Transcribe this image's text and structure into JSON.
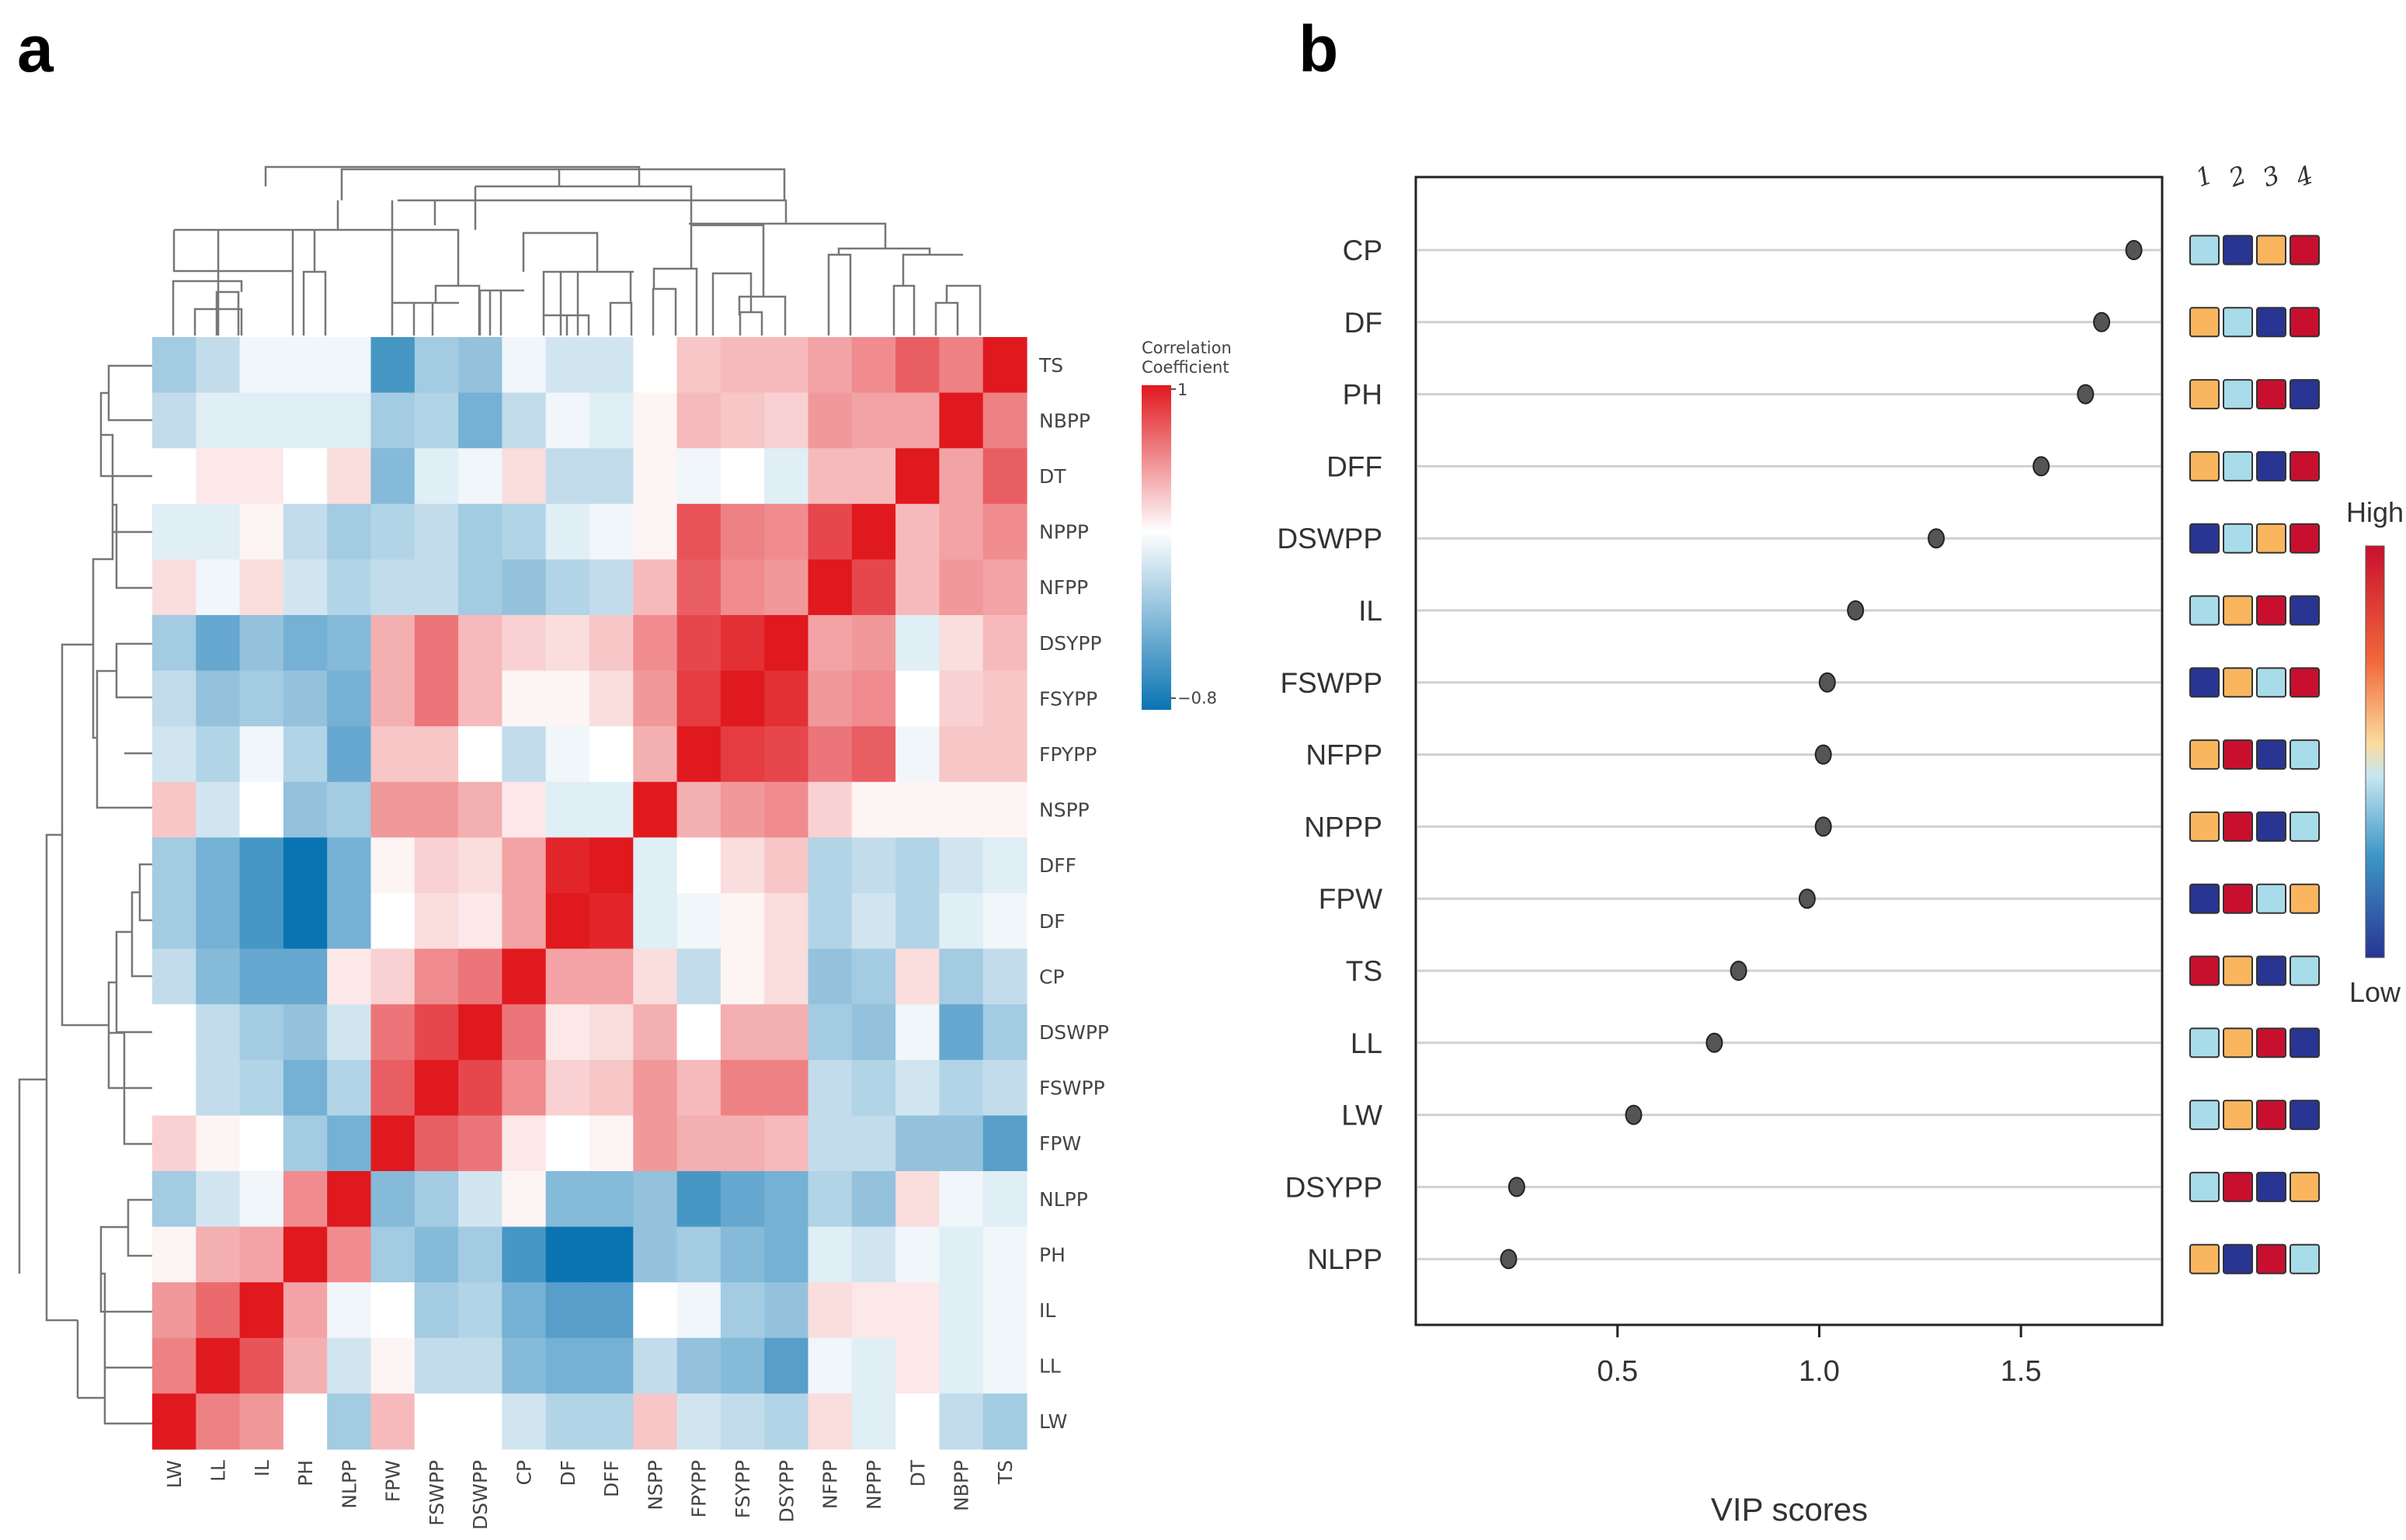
{
  "panel_a": {
    "letter": "a"
  },
  "panel_b": {
    "letter": "b"
  },
  "chart_data": [
    {
      "type": "heatmap",
      "title": "",
      "rows": [
        "TS",
        "NBPP",
        "DT",
        "NPPP",
        "NFPP",
        "DSYPP",
        "FSYPP",
        "FPYPP",
        "NSPP",
        "DFF",
        "DF",
        "CP",
        "DSWPP",
        "FSWPP",
        "FPW",
        "NLPP",
        "PH",
        "IL",
        "LL",
        "LW"
      ],
      "columns": [
        "LW",
        "LL",
        "IL",
        "PH",
        "NLPP",
        "FPW",
        "FSWPP",
        "DSWPP",
        "CP",
        "DF",
        "DFF",
        "NSPP",
        "FPYPP",
        "FSYPP",
        "DSYPP",
        "NFPP",
        "NPPP",
        "DT",
        "NBPP",
        "TS"
      ],
      "values": [
        [
          -0.3,
          -0.2,
          -0.05,
          -0.05,
          -0.05,
          -0.6,
          -0.3,
          -0.35,
          -0.05,
          -0.15,
          -0.15,
          0.0,
          0.25,
          0.3,
          0.3,
          0.4,
          0.5,
          0.7,
          0.55,
          1.0
        ],
        [
          -0.2,
          -0.1,
          -0.1,
          -0.1,
          -0.1,
          -0.3,
          -0.25,
          -0.45,
          -0.2,
          -0.05,
          -0.1,
          0.05,
          0.3,
          0.25,
          0.2,
          0.45,
          0.4,
          0.4,
          1.0,
          0.55
        ],
        [
          0.0,
          0.1,
          0.1,
          0.0,
          0.15,
          -0.4,
          -0.1,
          -0.05,
          0.15,
          -0.2,
          -0.2,
          0.05,
          -0.05,
          0.0,
          -0.1,
          0.3,
          0.3,
          1.0,
          0.4,
          0.7
        ],
        [
          -0.1,
          -0.1,
          0.05,
          -0.2,
          -0.3,
          -0.25,
          -0.2,
          -0.3,
          -0.25,
          -0.1,
          -0.05,
          0.05,
          0.75,
          0.55,
          0.5,
          0.8,
          1.0,
          0.3,
          0.4,
          0.5
        ],
        [
          0.15,
          -0.05,
          0.15,
          -0.15,
          -0.25,
          -0.2,
          -0.2,
          -0.3,
          -0.35,
          -0.25,
          -0.2,
          0.3,
          0.7,
          0.5,
          0.45,
          1.0,
          0.8,
          0.3,
          0.45,
          0.4
        ],
        [
          -0.3,
          -0.5,
          -0.35,
          -0.45,
          -0.4,
          0.35,
          0.6,
          0.3,
          0.2,
          0.15,
          0.25,
          0.5,
          0.8,
          0.9,
          1.0,
          0.4,
          0.45,
          -0.1,
          0.15,
          0.3
        ],
        [
          -0.2,
          -0.35,
          -0.3,
          -0.35,
          -0.45,
          0.35,
          0.6,
          0.3,
          0.05,
          0.05,
          0.15,
          0.45,
          0.85,
          1.0,
          0.9,
          0.45,
          0.5,
          0.0,
          0.2,
          0.25
        ],
        [
          -0.15,
          -0.25,
          -0.05,
          -0.25,
          -0.5,
          0.25,
          0.25,
          0.0,
          -0.2,
          -0.05,
          0.0,
          0.35,
          1.0,
          0.85,
          0.8,
          0.6,
          0.7,
          -0.05,
          0.25,
          0.25
        ],
        [
          0.25,
          -0.15,
          0.0,
          -0.35,
          -0.3,
          0.45,
          0.45,
          0.35,
          0.1,
          -0.1,
          -0.1,
          1.0,
          0.35,
          0.45,
          0.5,
          0.2,
          0.05,
          0.05,
          0.05,
          0.05
        ],
        [
          -0.3,
          -0.45,
          -0.6,
          -0.8,
          -0.45,
          0.05,
          0.2,
          0.15,
          0.4,
          0.95,
          1.0,
          -0.1,
          0.0,
          0.15,
          0.25,
          -0.25,
          -0.2,
          -0.25,
          -0.15,
          -0.1
        ],
        [
          -0.3,
          -0.45,
          -0.6,
          -0.8,
          -0.45,
          0.0,
          0.15,
          0.1,
          0.4,
          1.0,
          0.95,
          -0.1,
          -0.05,
          0.05,
          0.15,
          -0.25,
          -0.15,
          -0.25,
          -0.1,
          -0.05
        ],
        [
          -0.2,
          -0.4,
          -0.5,
          -0.5,
          0.1,
          0.2,
          0.5,
          0.6,
          1.0,
          0.4,
          0.4,
          0.15,
          -0.2,
          0.05,
          0.15,
          -0.35,
          -0.3,
          0.15,
          -0.3,
          -0.2
        ],
        [
          0.0,
          -0.2,
          -0.3,
          -0.35,
          -0.15,
          0.6,
          0.8,
          1.0,
          0.6,
          0.1,
          0.15,
          0.35,
          0.0,
          0.35,
          0.35,
          -0.3,
          -0.35,
          -0.05,
          -0.5,
          -0.3
        ],
        [
          0.0,
          -0.2,
          -0.25,
          -0.45,
          -0.25,
          0.7,
          1.0,
          0.8,
          0.5,
          0.2,
          0.25,
          0.45,
          0.3,
          0.55,
          0.55,
          -0.2,
          -0.25,
          -0.15,
          -0.25,
          -0.2
        ],
        [
          0.2,
          0.05,
          0.0,
          -0.3,
          -0.45,
          1.0,
          0.7,
          0.6,
          0.1,
          0.0,
          0.05,
          0.45,
          0.35,
          0.35,
          0.3,
          -0.2,
          -0.2,
          -0.35,
          -0.35,
          -0.55
        ],
        [
          -0.3,
          -0.15,
          -0.05,
          0.5,
          1.0,
          -0.4,
          -0.3,
          -0.15,
          0.05,
          -0.4,
          -0.4,
          -0.35,
          -0.6,
          -0.5,
          -0.45,
          -0.25,
          -0.35,
          0.15,
          -0.05,
          -0.1
        ],
        [
          0.05,
          0.35,
          0.4,
          1.0,
          0.5,
          -0.3,
          -0.4,
          -0.3,
          -0.6,
          -0.8,
          -0.8,
          -0.35,
          -0.3,
          -0.4,
          -0.45,
          -0.1,
          -0.15,
          -0.05,
          -0.1,
          -0.05
        ],
        [
          0.45,
          0.65,
          1.0,
          0.4,
          -0.05,
          0.0,
          -0.3,
          -0.25,
          -0.45,
          -0.55,
          -0.55,
          0.0,
          -0.05,
          -0.3,
          -0.35,
          0.15,
          0.1,
          0.1,
          -0.1,
          -0.05
        ],
        [
          0.55,
          1.0,
          0.75,
          0.35,
          -0.15,
          0.05,
          -0.2,
          -0.2,
          -0.4,
          -0.45,
          -0.45,
          -0.2,
          -0.35,
          -0.4,
          -0.55,
          -0.05,
          -0.1,
          0.1,
          -0.1,
          -0.05
        ],
        [
          1.0,
          0.55,
          0.45,
          0.0,
          -0.3,
          0.3,
          0.0,
          0.0,
          -0.15,
          -0.25,
          -0.25,
          0.25,
          -0.15,
          -0.2,
          -0.25,
          0.15,
          -0.1,
          0.0,
          -0.2,
          -0.3
        ]
      ],
      "colorbar": {
        "title_line1": "Correlation",
        "title_line2": "Coefficient",
        "max_label": "1",
        "min_label": "−0.8",
        "range": [
          -0.8,
          1
        ]
      }
    },
    {
      "type": "scatter",
      "title": "",
      "xlabel": "VIP scores",
      "ylabel": "",
      "xlim": [
        0.0,
        1.85
      ],
      "xticks": [
        0.5,
        1.0,
        1.5
      ],
      "xtick_labels": [
        "0.5",
        "1.0",
        "1.5"
      ],
      "grid": "horizontal",
      "categories": [
        "CP",
        "DF",
        "PH",
        "DFF",
        "DSWPP",
        "IL",
        "FSWPP",
        "NFPP",
        "NPPP",
        "FPW",
        "TS",
        "LL",
        "LW",
        "DSYPP",
        "NLPP"
      ],
      "values": [
        1.78,
        1.7,
        1.66,
        1.55,
        1.29,
        1.09,
        1.02,
        1.01,
        1.01,
        0.97,
        0.8,
        0.74,
        0.54,
        0.25,
        0.23
      ],
      "side_matrix": {
        "column_labels": [
          "1",
          "2",
          "3",
          "4"
        ],
        "levels": [
          [
            2,
            1,
            3,
            4
          ],
          [
            3,
            2,
            1,
            4
          ],
          [
            3,
            2,
            4,
            1
          ],
          [
            3,
            2,
            1,
            4
          ],
          [
            1,
            2,
            3,
            4
          ],
          [
            2,
            3,
            4,
            1
          ],
          [
            1,
            3,
            2,
            4
          ],
          [
            3,
            4,
            1,
            2
          ],
          [
            3,
            4,
            1,
            2
          ],
          [
            1,
            4,
            2,
            3
          ],
          [
            4,
            3,
            1,
            2
          ],
          [
            2,
            3,
            4,
            1
          ],
          [
            2,
            3,
            4,
            1
          ],
          [
            2,
            4,
            1,
            3
          ],
          [
            3,
            1,
            4,
            2
          ]
        ],
        "level_colors": {
          "1": "#283593",
          "2": "#a8dcea",
          "3": "#f9b65e",
          "4": "#c8102e"
        },
        "legend": {
          "high_label": "High",
          "low_label": "Low"
        }
      }
    }
  ]
}
